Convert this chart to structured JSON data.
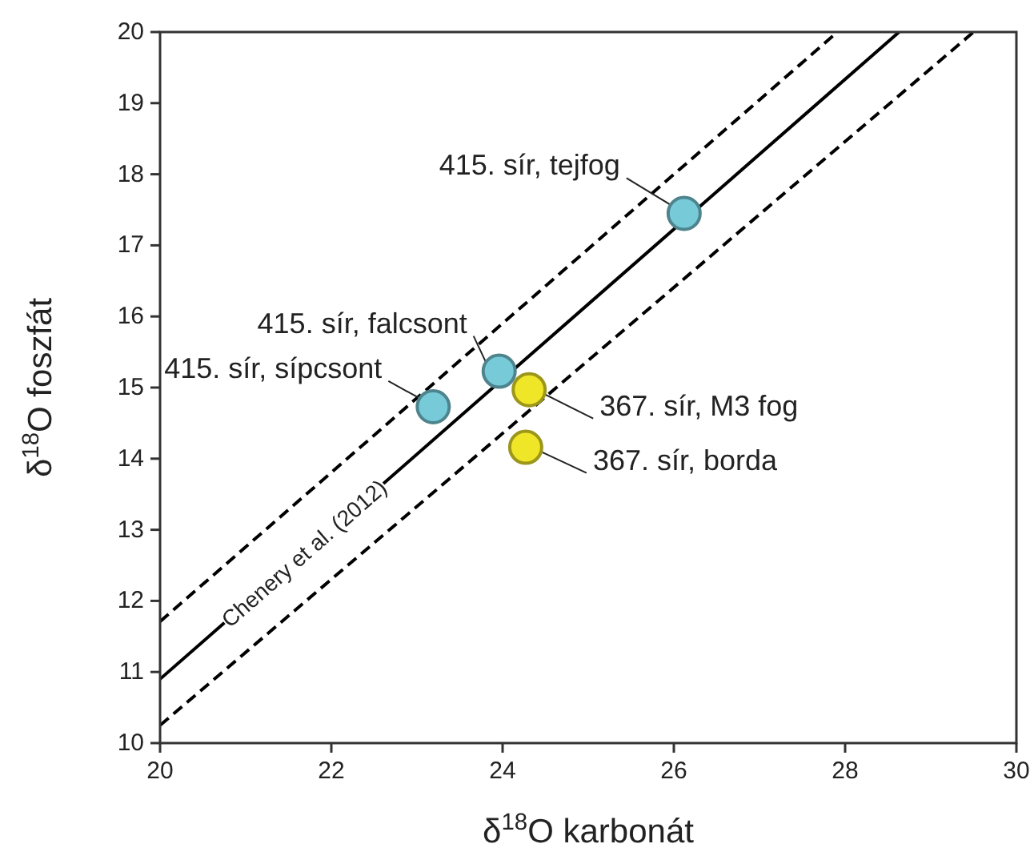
{
  "chart_data": {
    "type": "scatter",
    "xlabel": "δ$^{18}$O karbonát",
    "ylabel": "δ$^{18}$O  foszfát",
    "xlim": [
      20,
      30
    ],
    "ylim": [
      10,
      20
    ],
    "xticks": [
      20,
      22,
      24,
      26,
      28,
      30
    ],
    "yticks": [
      10,
      11,
      12,
      13,
      14,
      15,
      16,
      17,
      18,
      19,
      20
    ],
    "grid": false,
    "series": [
      {
        "type": "line",
        "x": [
          20,
          28.63
        ],
        "values": [
          10.9,
          20
        ],
        "color": "#000000",
        "line_style": "solid"
      },
      {
        "type": "line",
        "x": [
          20,
          27.91
        ],
        "values": [
          11.71,
          20
        ],
        "color": "#000000",
        "line_style": "dashed"
      },
      {
        "type": "line",
        "x": [
          20,
          29.5
        ],
        "values": [
          10.25,
          20
        ],
        "color": "#000000",
        "line_style": "dashed"
      },
      {
        "marker": "circle",
        "x": [
          23.19,
          23.96,
          26.12,
          24.31,
          24.27
        ],
        "values": [
          14.73,
          15.23,
          17.45,
          14.97,
          14.16
        ],
        "colors": [
          "#77cbd9",
          "#77cbd9",
          "#77cbd9",
          "#f0e628",
          "#f0e628"
        ]
      }
    ],
    "annotations": [
      {
        "text": "415. sír, tejfog",
        "x": 26.12,
        "y": 17.45
      },
      {
        "text": "415. sír, falcsont",
        "x": 23.96,
        "y": 15.23
      },
      {
        "text": "415. sír, sípcsont",
        "x": 23.19,
        "y": 14.73
      },
      {
        "text": "367. sír, M3 fog",
        "x": 24.31,
        "y": 14.97
      },
      {
        "text": "367. sír, borda",
        "x": 24.27,
        "y": 14.16
      },
      {
        "text": "Chenery et al. (2012)",
        "x": 21.68,
        "y": 12.67
      }
    ]
  }
}
